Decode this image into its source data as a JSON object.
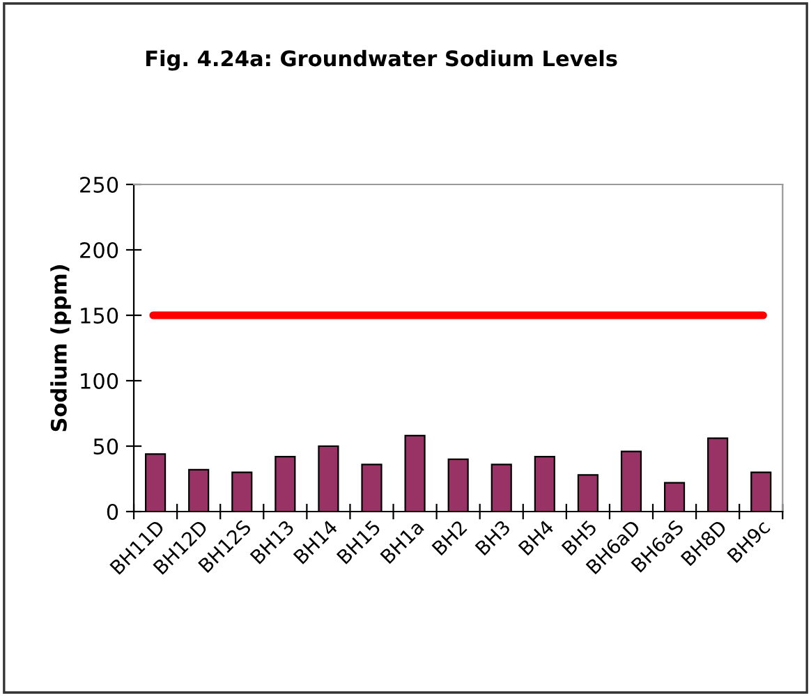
{
  "chart_data": {
    "type": "bar",
    "title": "Fig. 4.24a: Groundwater Sodium Levels",
    "ylabel": "Sodium (ppm)",
    "categories": [
      "BH11D",
      "BH12D",
      "BH12S",
      "BH13",
      "BH14",
      "BH15",
      "BH1a",
      "BH2",
      "BH3",
      "BH4",
      "BH5",
      "BH6aD",
      "BH6aS",
      "BH8D",
      "BH9c"
    ],
    "values": [
      44,
      32,
      30,
      42,
      50,
      36,
      58,
      40,
      36,
      42,
      28,
      46,
      22,
      56,
      30
    ],
    "color": "#993366",
    "ylim": [
      0,
      250
    ],
    "yticks": [
      0,
      50,
      100,
      150,
      200,
      250
    ],
    "grid": false,
    "legend": false,
    "ref_lines": [
      {
        "axis": "y",
        "value": 150,
        "color": "#ff0000",
        "line_style": "solid"
      }
    ]
  }
}
